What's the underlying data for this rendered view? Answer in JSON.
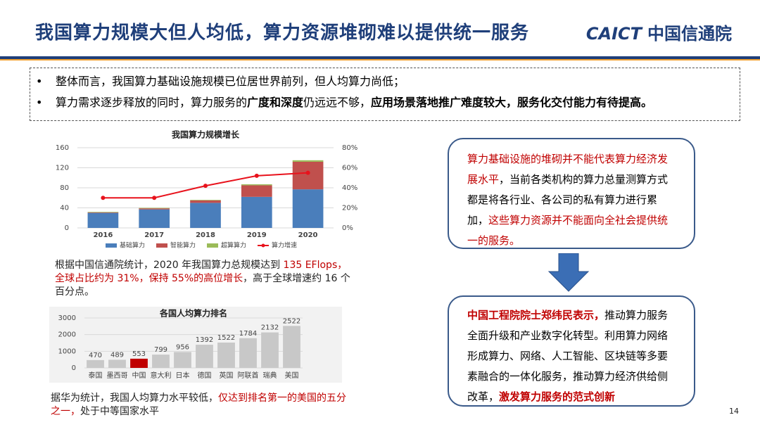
{
  "header": {
    "title": "我国算力规模大但人均低，算力资源堆砌难以提供统一服务",
    "logo_text": "CAICT",
    "logo_name": "中国信通院"
  },
  "bullets": [
    [
      {
        "text": "整体而言，我国算力基础设施规模已位居世界前列，但人均算力尚低；"
      }
    ],
    [
      {
        "text": "算力需求逐步释放的同时，算力服务的"
      },
      {
        "text": "广度和深度",
        "bold": true
      },
      {
        "text": "仍远远不够，"
      },
      {
        "text": "应用场景落地推广难度较大，服务化交付能力有待提高。",
        "bold": true
      }
    ]
  ],
  "chart_data": [
    {
      "type": "bar",
      "stacked": true,
      "title": "我国算力规模增长",
      "categories": [
        "2016",
        "2017",
        "2018",
        "2019",
        "2020"
      ],
      "series": [
        {
          "name": "基础算力",
          "color": "#4a7ebb",
          "values": [
            30,
            37,
            50,
            62,
            77
          ]
        },
        {
          "name": "智能算力",
          "color": "#c0504d",
          "values": [
            1,
            2,
            5,
            23,
            55
          ]
        },
        {
          "name": "超算算力",
          "color": "#9bbb59",
          "values": [
            1,
            1,
            1,
            2,
            3
          ]
        },
        {
          "name": "算力增速",
          "color": "#e8121c",
          "axis": "y2",
          "type": "line",
          "values": [
            30,
            30,
            42,
            52,
            55
          ]
        }
      ],
      "ylim": [
        0,
        160
      ],
      "yticks": [
        0,
        40,
        80,
        120,
        160
      ],
      "y2lim": [
        0,
        80
      ],
      "y2ticks": [
        {
          "value": 0,
          "label": "0%"
        },
        {
          "value": 20,
          "label": "20%"
        },
        {
          "value": 40,
          "label": "40%"
        },
        {
          "value": 60,
          "label": "60%"
        },
        {
          "value": 80,
          "label": "80%"
        }
      ],
      "grid": true,
      "legend": "bottom"
    },
    {
      "type": "bar",
      "title": "各国人均算力排名",
      "categories": [
        "泰国",
        "墨西哥",
        "中国",
        "意大利",
        "日本",
        "德国",
        "英国",
        "阿联酋",
        "瑞典",
        "美国"
      ],
      "values": [
        470,
        489,
        553,
        799,
        956,
        1392,
        1522,
        1784,
        2132,
        2522
      ],
      "colors": [
        "#c8c8c8",
        "#c8c8c8",
        "#c00000",
        "#c8c8c8",
        "#c8c8c8",
        "#c8c8c8",
        "#c8c8c8",
        "#c8c8c8",
        "#c8c8c8",
        "#c8c8c8"
      ],
      "ylim": [
        0,
        3000
      ],
      "yticks": [
        0,
        1000,
        2000,
        3000
      ],
      "grid": true
    }
  ],
  "caption1": [
    {
      "text": "根据中国信通院统计，2020 年我国算力总规模达到 "
    },
    {
      "text": "135 EFlops，全球占比约为 31%，保持 55%的高位增长",
      "color": "#c00000"
    },
    {
      "text": "，高于全球增速约 16 个百分点。"
    }
  ],
  "caption2": [
    {
      "text": "据华为统计，我国人均算力水平较低，"
    },
    {
      "text": "仅达到排名第一的美国的五分之一，",
      "color": "#c00000"
    },
    {
      "text": "处于中等国家水平"
    }
  ],
  "box1": [
    {
      "text": "算力基础设施的堆砌并不能代表算力经济发展水平",
      "color": "#c00000"
    },
    {
      "text": "，当前各类机构的算力总量测算方式都是将各行业、各公司的私有算力进行累加，"
    },
    {
      "text": "这些算力资源并不能面向全社会提供统一的服务。",
      "color": "#c00000"
    }
  ],
  "box2": [
    {
      "text": "中国工程院院士郑纬民表示，",
      "color": "#c00000",
      "bold": true
    },
    {
      "text": "推动算力服务全面升级和产业数字化转型。利用算力网络形成算力、网络、人工智能、区块链等多要素融合的一体化服务，推动算力经济供给侧改革，"
    },
    {
      "text": "激发算力服务的范式创新",
      "color": "#c00000",
      "bold": true
    }
  ],
  "page_number": "14"
}
